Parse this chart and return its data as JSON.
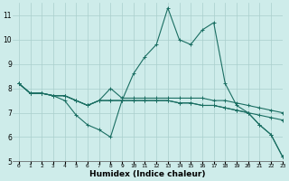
{
  "xlabel": "Humidex (Indice chaleur)",
  "xlim": [
    -0.5,
    23
  ],
  "ylim": [
    5,
    11.5
  ],
  "yticks": [
    5,
    6,
    7,
    8,
    9,
    10,
    11
  ],
  "xticks": [
    0,
    1,
    2,
    3,
    4,
    5,
    6,
    7,
    8,
    9,
    10,
    11,
    12,
    13,
    14,
    15,
    16,
    17,
    18,
    19,
    20,
    21,
    22,
    23
  ],
  "background_color": "#ceecea",
  "grid_color": "#aacfcc",
  "line_color": "#1a6e62",
  "series": [
    [
      8.2,
      7.8,
      7.8,
      7.7,
      7.5,
      6.9,
      6.5,
      6.3,
      6.0,
      7.5,
      8.6,
      9.3,
      9.8,
      11.3,
      10.0,
      9.8,
      10.4,
      10.7,
      8.2,
      7.3,
      7.0,
      6.5,
      6.1,
      5.2
    ],
    [
      8.2,
      7.8,
      7.8,
      7.7,
      7.7,
      7.5,
      7.3,
      7.5,
      8.0,
      7.6,
      7.6,
      7.6,
      7.6,
      7.6,
      7.6,
      7.6,
      7.6,
      7.5,
      7.5,
      7.4,
      7.3,
      7.2,
      7.1,
      7.0
    ],
    [
      8.2,
      7.8,
      7.8,
      7.7,
      7.7,
      7.5,
      7.3,
      7.5,
      7.5,
      7.5,
      7.5,
      7.5,
      7.5,
      7.5,
      7.4,
      7.4,
      7.3,
      7.3,
      7.2,
      7.1,
      7.0,
      6.9,
      6.8,
      6.7
    ],
    [
      8.2,
      7.8,
      7.8,
      7.7,
      7.7,
      7.5,
      7.3,
      7.5,
      7.5,
      7.5,
      7.5,
      7.5,
      7.5,
      7.5,
      7.4,
      7.4,
      7.3,
      7.3,
      7.2,
      7.1,
      7.0,
      6.5,
      6.1,
      5.2
    ]
  ]
}
